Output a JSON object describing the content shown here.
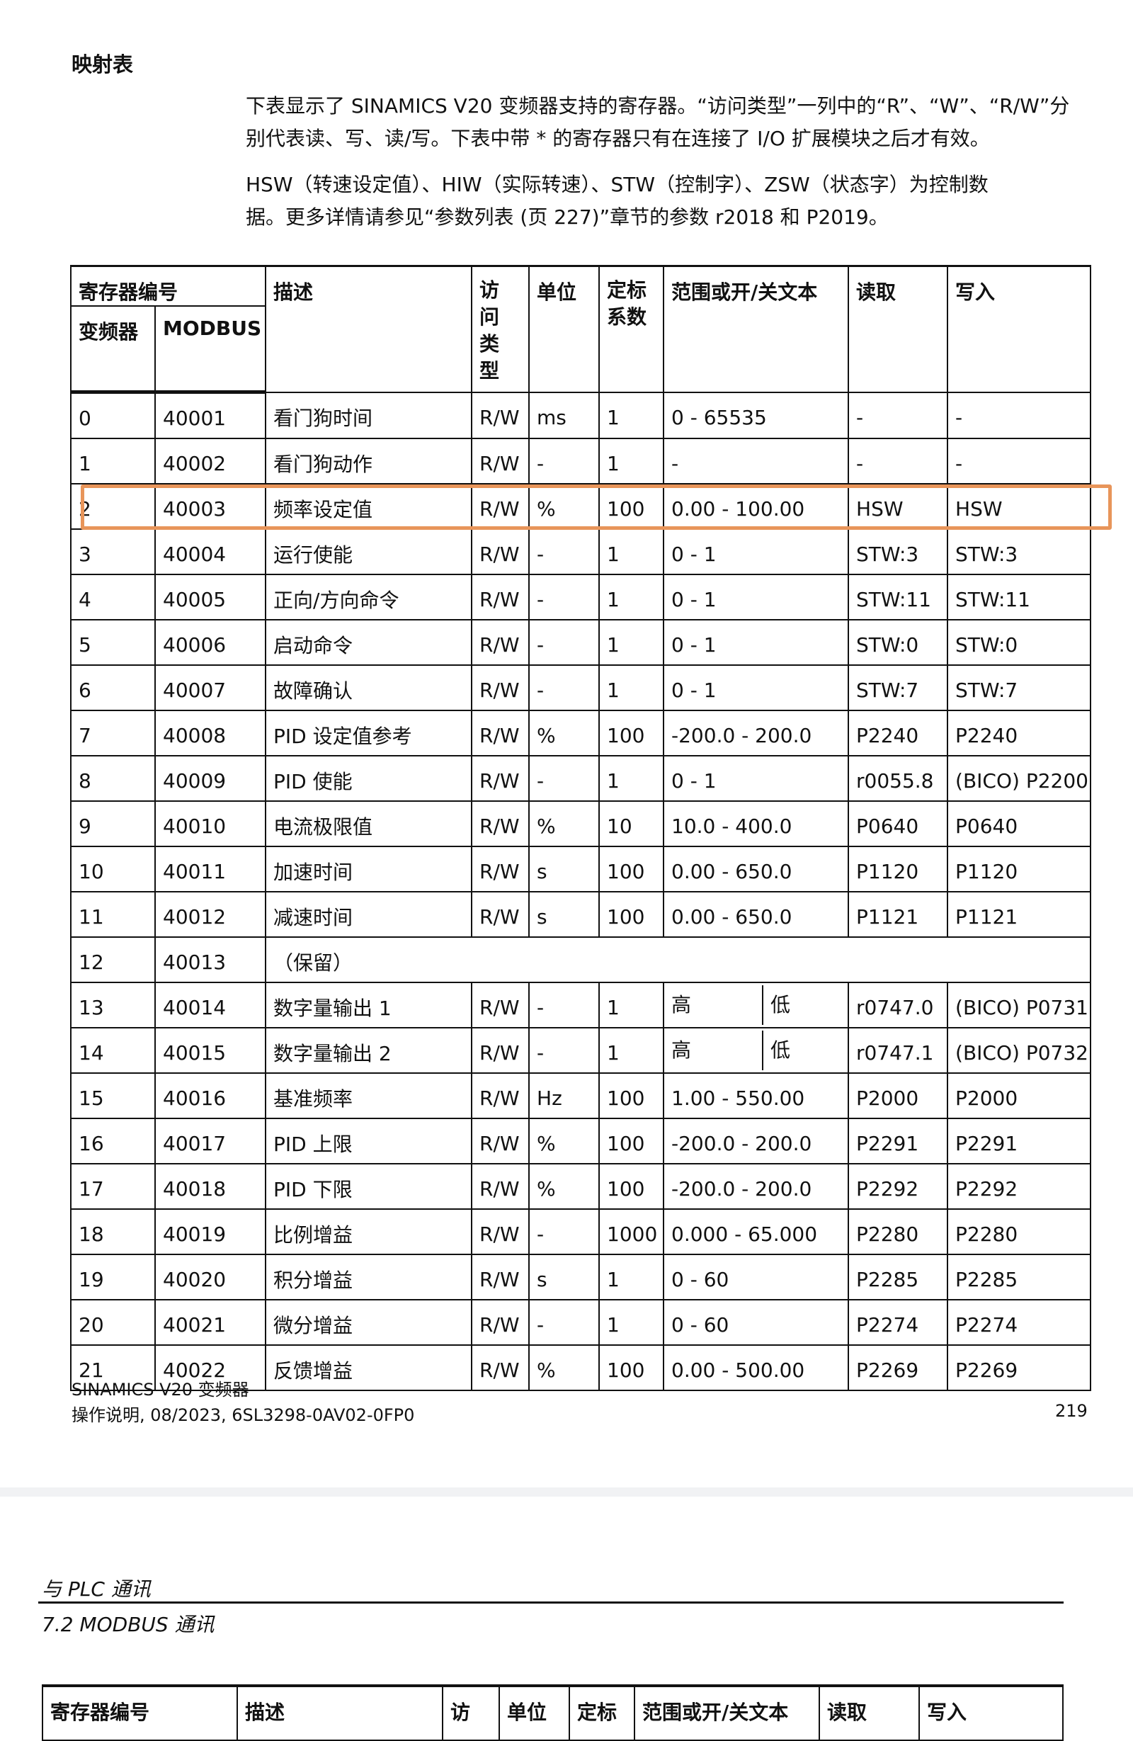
{
  "heading": "映射表",
  "paragraphs": [
    "下表显示了 SINAMICS V20 变频器支持的寄存器。“访问类型”一列中的“R”、“W”、“R/W”分",
    "别代表读、写、读/写。下表中带 * 的寄存器只有在连接了 I/O 扩展模块之后才有效。",
    "HSW（转速设定值）、HIW（实际转速）、STW（控制字）、ZSW（状态字）为控制数",
    "据。更多详情请参见“参数列表 (页 227)”章节的参数 r2018 和 P2019。"
  ],
  "table": {
    "headers": {
      "reg": "寄存器编号",
      "inverter": "变频器",
      "modbus": "MODBUS",
      "desc": "描述",
      "access": "访问类型",
      "unit": "单位",
      "scale": "定标系数",
      "range": "范围或开/关文本",
      "read": "读取",
      "write": "写入"
    },
    "rows": [
      [
        "0",
        "40001",
        "看门狗时间",
        "R/W",
        "ms",
        "1",
        "0 - 65535",
        "-",
        "-"
      ],
      [
        "1",
        "40002",
        "看门狗动作",
        "R/W",
        "-",
        "1",
        "-",
        "-",
        "-"
      ],
      [
        "2",
        "40003",
        "频率设定值",
        "R/W",
        "%",
        "100",
        "0.00 - 100.00",
        "HSW",
        "HSW"
      ],
      [
        "3",
        "40004",
        "运行使能",
        "R/W",
        "-",
        "1",
        "0 - 1",
        "STW:3",
        "STW:3"
      ],
      [
        "4",
        "40005",
        "正向/方向命令",
        "R/W",
        "-",
        "1",
        "0 - 1",
        "STW:11",
        "STW:11"
      ],
      [
        "5",
        "40006",
        "启动命令",
        "R/W",
        "-",
        "1",
        "0 - 1",
        "STW:0",
        "STW:0"
      ],
      [
        "6",
        "40007",
        "故障确认",
        "R/W",
        "-",
        "1",
        "0 - 1",
        "STW:7",
        "STW:7"
      ],
      [
        "7",
        "40008",
        "PID 设定值参考",
        "R/W",
        "%",
        "100",
        "-200.0 - 200.0",
        "P2240",
        "P2240"
      ],
      [
        "8",
        "40009",
        "PID 使能",
        "R/W",
        "-",
        "1",
        "0 - 1",
        "r0055.8",
        "(BICO) P2200"
      ],
      [
        "9",
        "40010",
        "电流极限值",
        "R/W",
        "%",
        "10",
        "10.0 - 400.0",
        "P0640",
        "P0640"
      ],
      [
        "10",
        "40011",
        "加速时间",
        "R/W",
        "s",
        "100",
        "0.00 - 650.0",
        "P1120",
        "P1120"
      ],
      [
        "11",
        "40012",
        "减速时间",
        "R/W",
        "s",
        "100",
        "0.00 - 650.0",
        "P1121",
        "P1121"
      ],
      [
        "12",
        "40013",
        "（保留）"
      ],
      [
        "13",
        "40014",
        "数字量输出 1",
        "R/W",
        "-",
        "1",
        [
          "高",
          "低"
        ],
        "r0747.0",
        "(BICO) P0731"
      ],
      [
        "14",
        "40015",
        "数字量输出 2",
        "R/W",
        "-",
        "1",
        [
          "高",
          "低"
        ],
        "r0747.1",
        "(BICO) P0732"
      ],
      [
        "15",
        "40016",
        "基准频率",
        "R/W",
        "Hz",
        "100",
        "1.00 - 550.00",
        "P2000",
        "P2000"
      ],
      [
        "16",
        "40017",
        "PID 上限",
        "R/W",
        "%",
        "100",
        "-200.0 - 200.0",
        "P2291",
        "P2291"
      ],
      [
        "17",
        "40018",
        "PID 下限",
        "R/W",
        "%",
        "100",
        "-200.0 - 200.0",
        "P2292",
        "P2292"
      ],
      [
        "18",
        "40019",
        "比例增益",
        "R/W",
        "-",
        "1000",
        "0.000 - 65.000",
        "P2280",
        "P2280"
      ],
      [
        "19",
        "40020",
        "积分增益",
        "R/W",
        "s",
        "1",
        "0 - 60",
        "P2285",
        "P2285"
      ],
      [
        "20",
        "40021",
        "微分增益",
        "R/W",
        "-",
        "1",
        "0 - 60",
        "P2274",
        "P2274"
      ],
      [
        "21",
        "40022",
        "反馈增益",
        "R/W",
        "%",
        "100",
        "0.00 - 500.00",
        "P2269",
        "P2269"
      ]
    ]
  },
  "footer": {
    "product": "SINAMICS V20 变频器",
    "doc": "操作说明, 08/2023, 6SL3298-0AV02-0FP0",
    "page": "219"
  },
  "next_page": {
    "chapter": "与 PLC 通讯",
    "section": "7.2 MODBUS 通讯",
    "headers": [
      "寄存器编号",
      "描述",
      "访",
      "单位",
      "定标",
      "范围或开/关文本",
      "读取",
      "写入"
    ]
  },
  "highlight_color": "#e8955a"
}
